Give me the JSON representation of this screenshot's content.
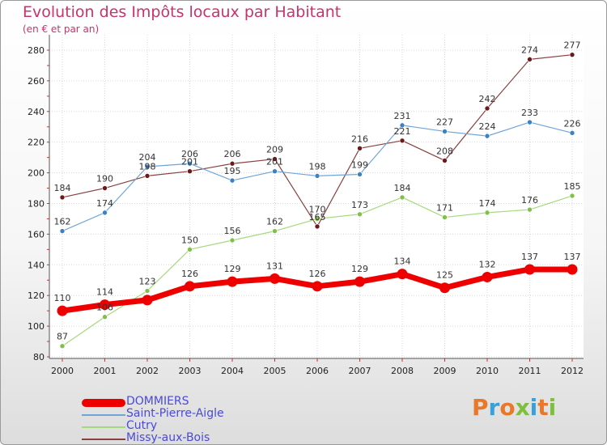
{
  "header": {
    "title": "Evolution des Impôts locaux par Habitant",
    "subtitle": "(en € et par an)"
  },
  "brand": {
    "text": "Proxiti",
    "letters": [
      {
        "ch": "P",
        "color": "#e8782a"
      },
      {
        "ch": "r",
        "color": "#3aa0d8"
      },
      {
        "ch": "o",
        "color": "#e8782a"
      },
      {
        "ch": "x",
        "color": "#7fbf3f"
      },
      {
        "ch": "i",
        "color": "#3aa0d8"
      },
      {
        "ch": "t",
        "color": "#e8782a"
      },
      {
        "ch": "i",
        "color": "#7fbf3f"
      }
    ]
  },
  "chart_data": {
    "type": "line",
    "title": "Evolution des Impôts locaux par Habitant",
    "ylabel": "(en € et par an)",
    "xlabel": "",
    "ylim": [
      80,
      280
    ],
    "yticks": [
      80,
      100,
      120,
      140,
      160,
      180,
      200,
      220,
      240,
      260,
      280
    ],
    "categories": [
      "2000",
      "2001",
      "2002",
      "2003",
      "2004",
      "2005",
      "2006",
      "2007",
      "2008",
      "2009",
      "2010",
      "2011",
      "2012"
    ],
    "legend_position": "bottom-left",
    "series": [
      {
        "name": "Missy-aux-Bois",
        "color": "#6b1a1a",
        "lineColor": "#8a4040",
        "width": 1.2,
        "markerColor": "#6b1a1a",
        "values": [
          184,
          190,
          198,
          201,
          206,
          209,
          165,
          216,
          221,
          208,
          242,
          274,
          277
        ],
        "labels": [
          "184",
          "190",
          "198",
          "201",
          "206",
          "209",
          "165",
          "216",
          "221",
          "208",
          "242",
          "274",
          "277"
        ]
      },
      {
        "name": "Saint-Pierre-Aigle",
        "color": "#3b82c4",
        "lineColor": "#6ea5d8",
        "width": 1.2,
        "markerColor": "#3b82c4",
        "values": [
          162,
          174,
          204,
          206,
          195,
          201,
          198,
          199,
          231,
          227,
          224,
          233,
          226
        ],
        "labels": [
          "162",
          "174",
          "204",
          "206",
          "195",
          "201",
          "198",
          "199",
          "231",
          "227",
          "224",
          "233",
          "226"
        ]
      },
      {
        "name": "Cutry",
        "color": "#8ccc55",
        "lineColor": "#a6d97d",
        "width": 1.2,
        "markerColor": "#7fc04a",
        "values": [
          87,
          106,
          123,
          150,
          156,
          162,
          170,
          173,
          184,
          171,
          174,
          176,
          185
        ],
        "labels": [
          "87",
          "106",
          "123",
          "150",
          "156",
          "162",
          "170",
          "173",
          "184",
          "171",
          "174",
          "176",
          "185"
        ]
      },
      {
        "name": "DOMMIERS",
        "color": "#ee0000",
        "lineColor": "#ee0000",
        "width": 7,
        "markerColor": "#ee0000",
        "values": [
          110,
          114,
          117,
          126,
          129,
          131,
          126,
          129,
          134,
          125,
          132,
          137,
          137
        ],
        "labels": [
          "110",
          "114",
          "",
          "126",
          "129",
          "131",
          "126",
          "129",
          "134",
          "125",
          "132",
          "137",
          "137"
        ]
      }
    ]
  },
  "legend": [
    {
      "name": "DOMMIERS",
      "color": "#ee0000",
      "thick": true
    },
    {
      "name": "Saint-Pierre-Aigle",
      "color": "#6ea5d8",
      "thick": false
    },
    {
      "name": "Cutry",
      "color": "#a6d97d",
      "thick": false
    },
    {
      "name": "Missy-aux-Bois",
      "color": "#8a4040",
      "thick": false
    }
  ]
}
